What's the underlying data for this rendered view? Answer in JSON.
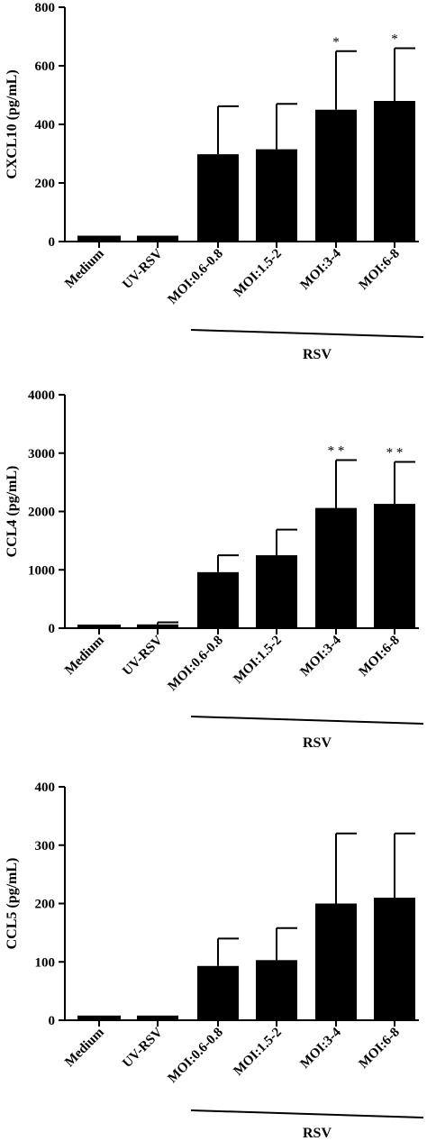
{
  "chart_data": [
    {
      "type": "bar",
      "ylabel": "CXCL10 (pg/mL)",
      "ylim": [
        0,
        800
      ],
      "yticks": [
        "0",
        "200",
        "400",
        "600",
        "800"
      ],
      "categories": [
        "Medium",
        "UV-RSV",
        "MOI:0.6-0.8",
        "MOI:1.5-2",
        "MOI:3-4",
        "MOI:6-8"
      ],
      "values": [
        20,
        20,
        298,
        315,
        450,
        480
      ],
      "error_upper": [
        20,
        20,
        462,
        470,
        650,
        660
      ],
      "significance": [
        "",
        "",
        "",
        "",
        "*",
        "*"
      ],
      "group_label": "RSV",
      "group_start": 2
    },
    {
      "type": "bar",
      "ylabel": "CCL4 (pg/mL)",
      "ylim": [
        0,
        4000
      ],
      "yticks": [
        "0",
        "1000",
        "2000",
        "3000",
        "4000"
      ],
      "categories": [
        "Medium",
        "UV-RSV",
        "MOI:0.6-0.8",
        "MOI:1.5-2",
        "MOI:3-4",
        "MOI:6-8"
      ],
      "values": [
        30,
        65,
        960,
        1250,
        2060,
        2130
      ],
      "error_upper": [
        30,
        100,
        1250,
        1690,
        2880,
        2850
      ],
      "significance": [
        "",
        "",
        "",
        "",
        "* *",
        "* *"
      ],
      "group_label": "RSV",
      "group_start": 2
    },
    {
      "type": "bar",
      "ylabel": "CCL5 (pg/mL)",
      "ylim": [
        0,
        400
      ],
      "yticks": [
        "0",
        "100",
        "200",
        "300",
        "400"
      ],
      "categories": [
        "Medium",
        "UV-RSV",
        "MOI:0.6-0.8",
        "MOI:1.5-2",
        "MOI:3-4",
        "MOI:6-8"
      ],
      "values": [
        8,
        8,
        93,
        103,
        200,
        210
      ],
      "error_upper": [
        8,
        8,
        140,
        158,
        320,
        320
      ],
      "significance": [
        "",
        "",
        "",
        "",
        "",
        ""
      ],
      "group_label": "RSV",
      "group_start": 2
    }
  ]
}
